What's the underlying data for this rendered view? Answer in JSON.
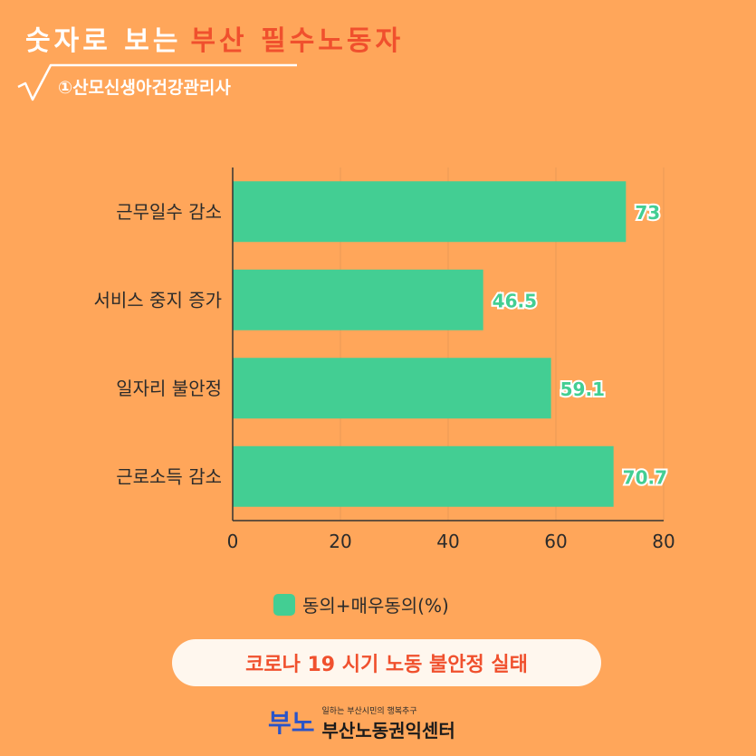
{
  "header": {
    "title_white": "숫자로 보는",
    "title_red": "부산 필수노동자",
    "subtitle": "①산모신생아건강관리사"
  },
  "chart_data": {
    "type": "bar",
    "orientation": "horizontal",
    "categories": [
      "근무일수 감소",
      "서비스 중지 증가",
      "일자리 불안정",
      "근로소득 감소"
    ],
    "series": [
      {
        "name": "동의+매우동의(%)",
        "values": [
          73,
          46.5,
          59.1,
          70.7
        ],
        "color": "#43CE93"
      }
    ],
    "value_labels": [
      "73",
      "46.5",
      "59.1",
      "70.7"
    ],
    "xlim": [
      0,
      80
    ],
    "xticks": [
      0,
      20,
      40,
      60,
      80
    ],
    "grid": true,
    "legend_position": "bottom"
  },
  "legend": {
    "label": "동의+매우동의(%)"
  },
  "caption": "코로나 19 시기 노동 불안정 실태",
  "footer": {
    "logo_mark": "부노",
    "tagline": "일하는 부산시민의 행복추구",
    "org_name": "부산노동권익센터"
  },
  "colors": {
    "background": "#FFA65A",
    "bar": "#43CE93",
    "accent_red": "#F0502D",
    "caption_bg": "#FFF7EE"
  }
}
